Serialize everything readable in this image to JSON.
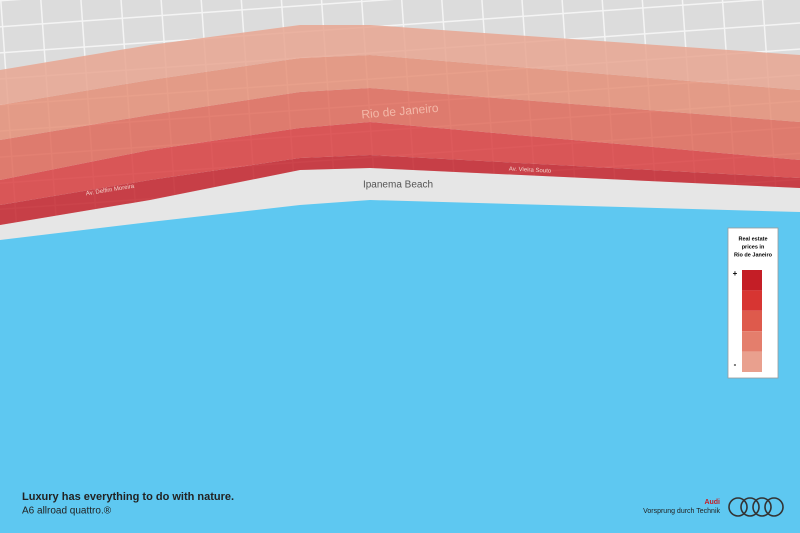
{
  "map": {
    "city_label": "Rio de Janeiro",
    "beach_label": "Ipanema Beach",
    "streets": [
      "Av. Delfim Moreira",
      "Av. Vieira Souto"
    ]
  },
  "legend": {
    "title": [
      "Real estate",
      "prices in",
      "Rio de Janeiro"
    ],
    "high": "+",
    "low": "-",
    "colors": [
      "#c41e26",
      "#d73532",
      "#de5a4c",
      "#e47e6c",
      "#e9a08e"
    ]
  },
  "footer": {
    "headline": "Luxury has everything to do with nature.",
    "model": "A6 allroad quattro.®",
    "brand": "Audi",
    "slogan": "Vorsprung durch Technik"
  }
}
